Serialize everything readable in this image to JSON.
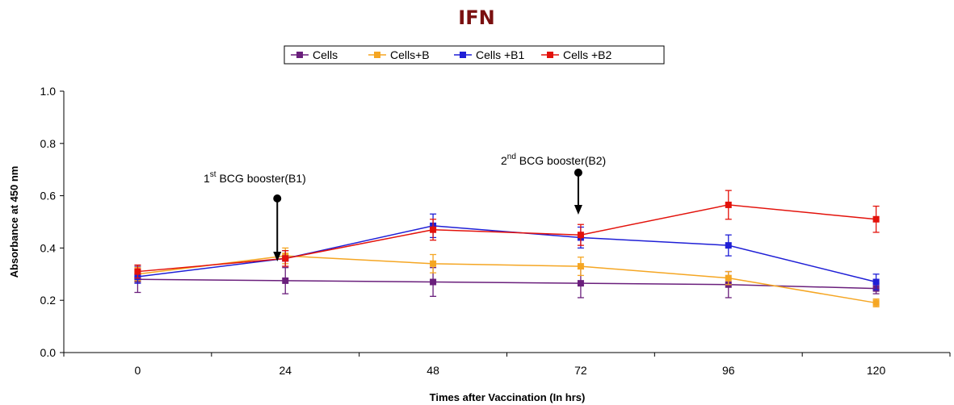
{
  "chart_data": {
    "type": "line",
    "title": "IFN",
    "xlabel": "Times after Vaccination (In hrs)",
    "ylabel": "Absorbance at 450 nm",
    "categories": [
      "0",
      "24",
      "48",
      "72",
      "96",
      "120"
    ],
    "ylim": [
      0,
      1.0
    ],
    "yticks": [
      "0.0",
      "0.2",
      "0.4",
      "0.6",
      "0.8",
      "1.0"
    ],
    "grid": false,
    "legend_position": "top-center",
    "series": [
      {
        "name": "Cells",
        "color": "#6a1f7c",
        "values": [
          0.28,
          0.275,
          0.27,
          0.265,
          0.26,
          0.245
        ],
        "errors": [
          0.05,
          0.05,
          0.055,
          0.055,
          0.05,
          0.02
        ]
      },
      {
        "name": "Cells+B",
        "color": "#f5a623",
        "values": [
          0.3,
          0.37,
          0.34,
          0.33,
          0.285,
          0.19
        ],
        "errors": [
          0.025,
          0.03,
          0.035,
          0.035,
          0.025,
          0.015
        ]
      },
      {
        "name": "Cells +B1",
        "color": "#1f1fd6",
        "values": [
          0.29,
          0.36,
          0.485,
          0.44,
          0.41,
          0.27
        ],
        "errors": [
          0.025,
          0.03,
          0.045,
          0.04,
          0.04,
          0.03
        ]
      },
      {
        "name": "Cells +B2",
        "color": "#e3120b",
        "values": [
          0.31,
          0.36,
          0.47,
          0.45,
          0.565,
          0.51
        ],
        "errors": [
          0.025,
          0.03,
          0.04,
          0.04,
          0.055,
          0.05
        ]
      }
    ],
    "annotations": [
      {
        "base": "1",
        "sup": "st",
        "text": " BCG booster(B1)",
        "x_category": "24"
      },
      {
        "base": "2",
        "sup": "nd",
        "text": " BCG booster(B2)",
        "x_category": "72"
      }
    ]
  }
}
